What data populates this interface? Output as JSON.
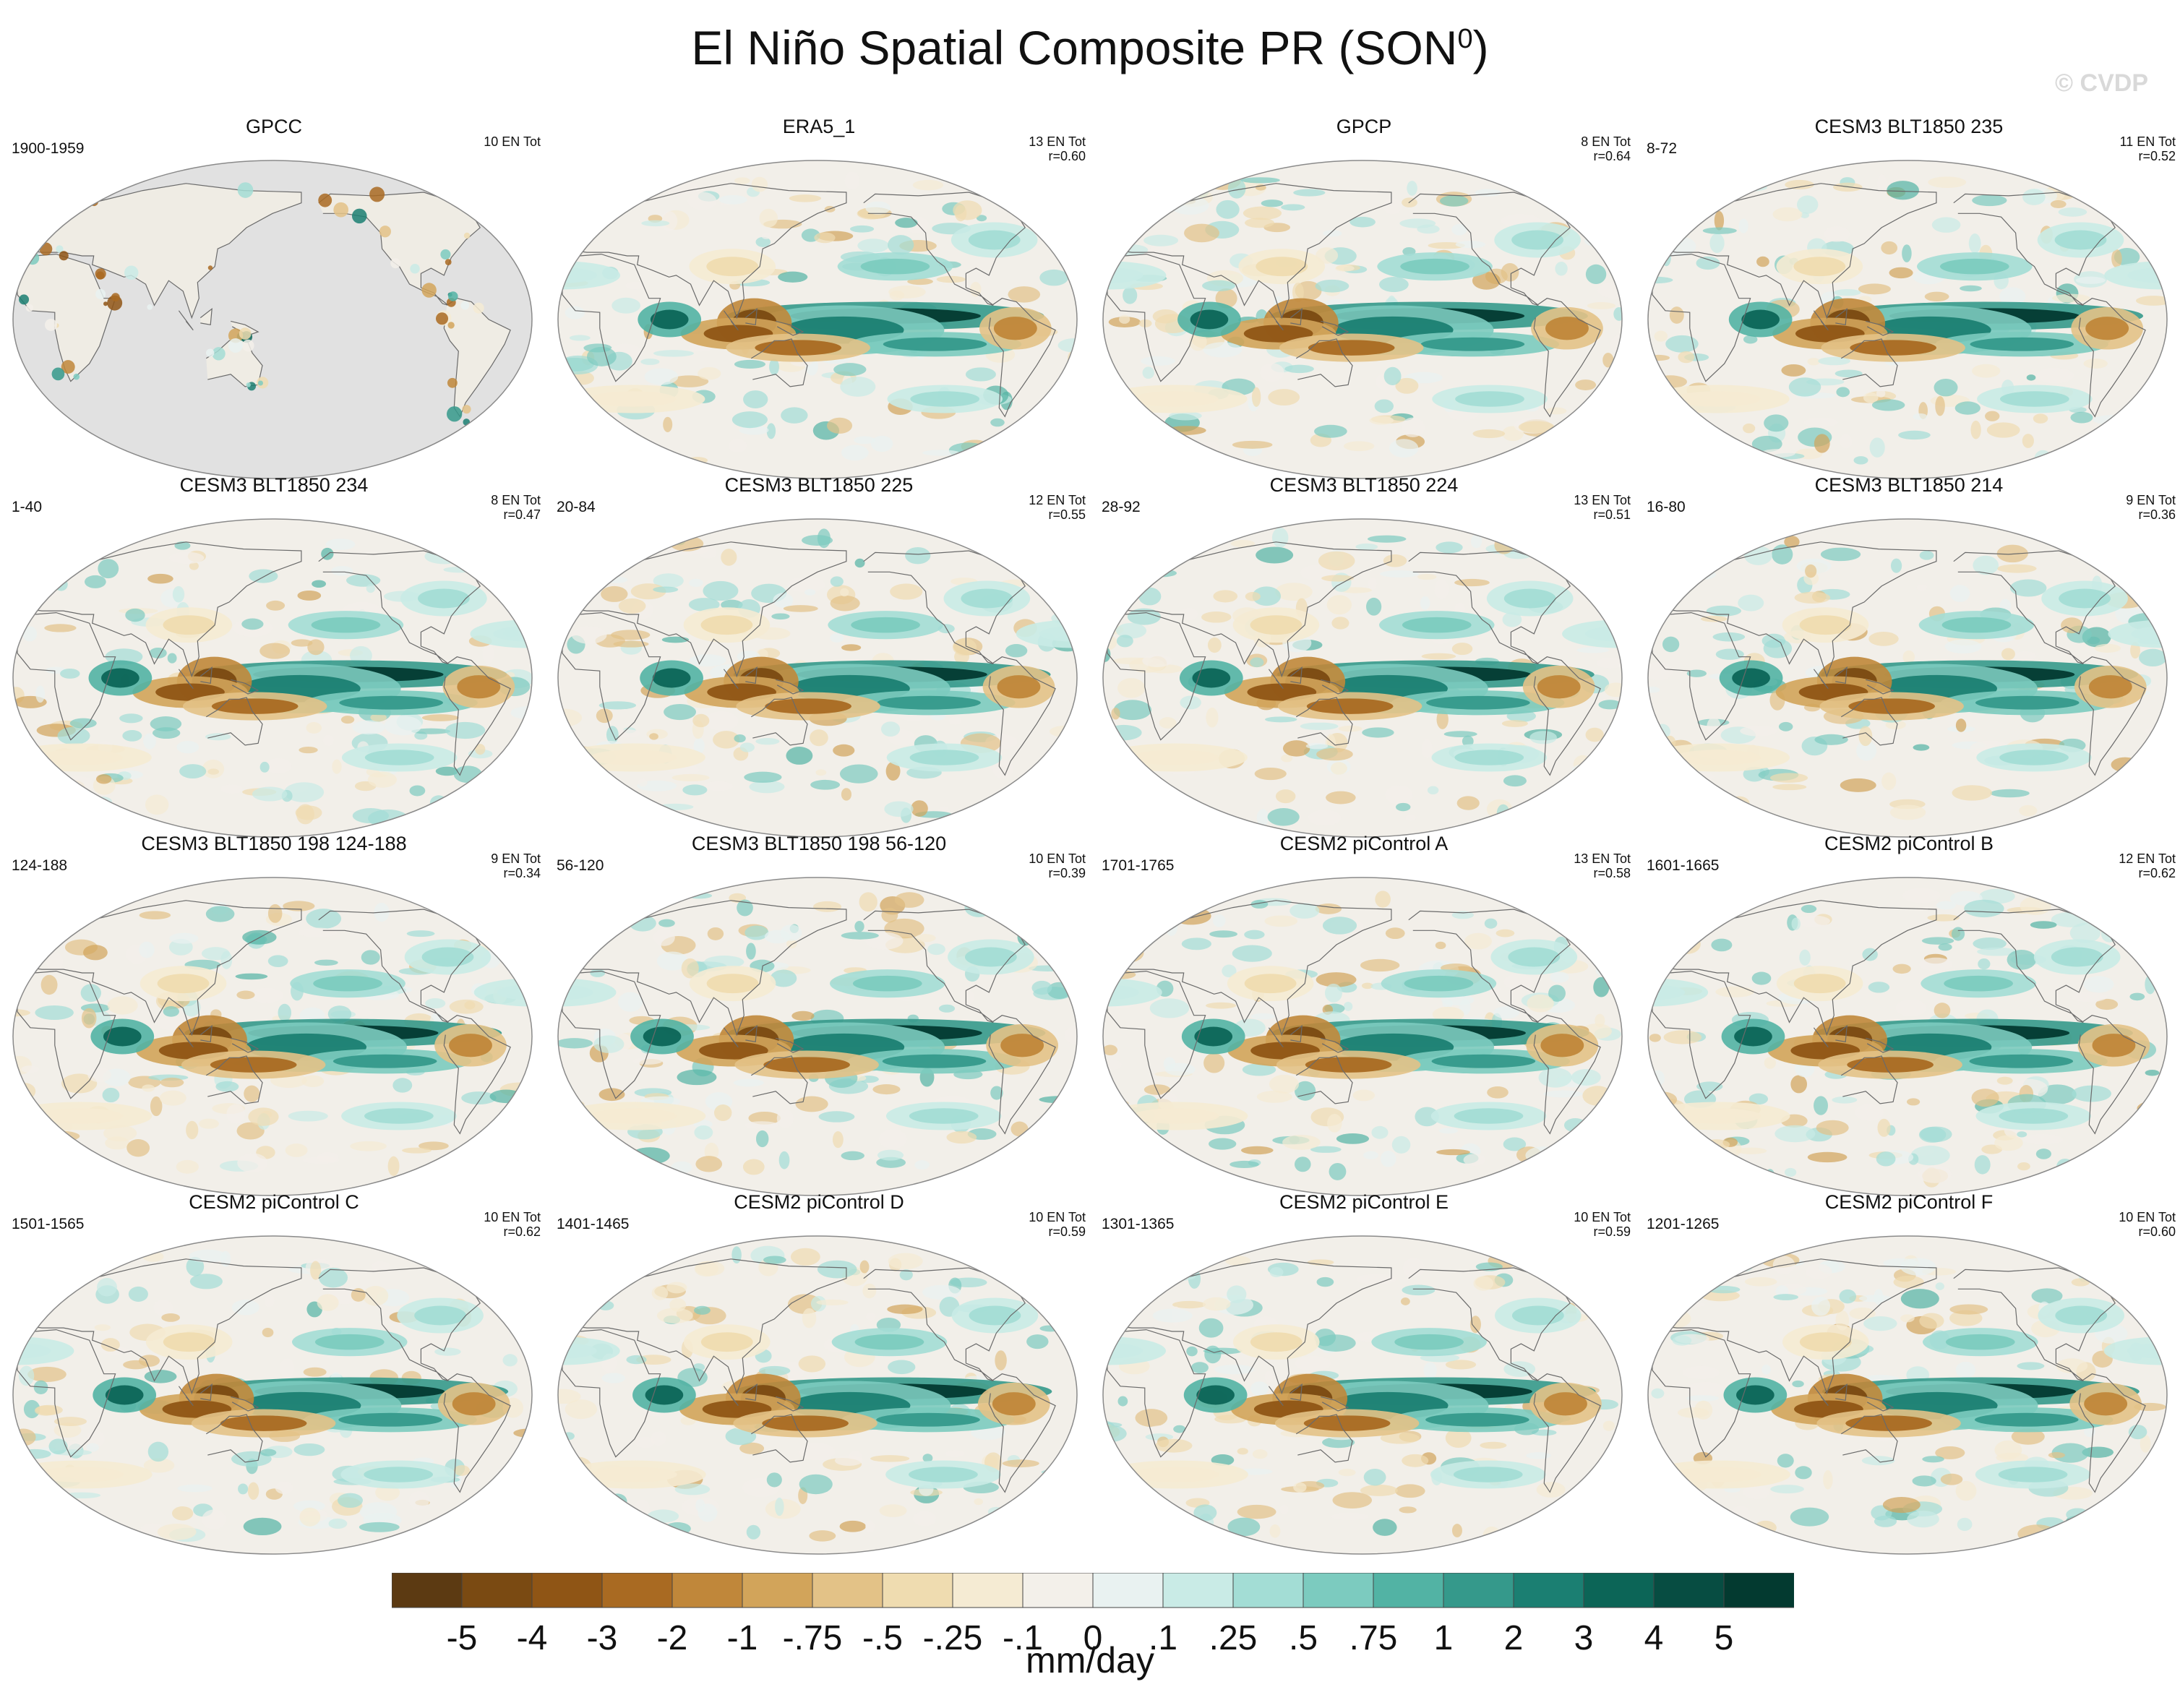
{
  "title": {
    "main": "El Niño Spatial Composite PR (SON",
    "sup": "0",
    "close": ")"
  },
  "watermark": "© CVDP",
  "chart_data": {
    "type": "heatmap",
    "title": "El Niño Spatial Composite PR (SON0)",
    "units": "mm/day",
    "colorbar": {
      "labels": [
        "-5",
        "-4",
        "-3",
        "-2",
        "-1",
        "-.75",
        "-.5",
        "-.25",
        "-.1",
        "0",
        ".1",
        ".25",
        ".5",
        ".75",
        "1",
        "2",
        "3",
        "4",
        "5"
      ],
      "colors": [
        "#5c3a12",
        "#7a4a12",
        "#8f5515",
        "#a96a22",
        "#c0873a",
        "#d2a45a",
        "#e3c287",
        "#efdcb0",
        "#f5ebd3",
        "#f3f0ea",
        "#e9f2f1",
        "#c9ebe6",
        "#a3ddd5",
        "#7ccbbf",
        "#52b3a4",
        "#35998b",
        "#1b7f72",
        "#0c6557",
        "#074d42",
        "#033a30"
      ]
    },
    "panels": [
      {
        "title": "GPCC",
        "period": "1900-1959",
        "events": "10 EN Tot",
        "r": "",
        "land_only": true
      },
      {
        "title": "ERA5_1",
        "period": "",
        "events": "13 EN Tot",
        "r": "r=0.60"
      },
      {
        "title": "GPCP",
        "period": "",
        "events": "8 EN Tot",
        "r": "r=0.64"
      },
      {
        "title": "CESM3 BLT1850 235",
        "period": "8-72",
        "events": "11 EN Tot",
        "r": "r=0.52"
      },
      {
        "title": "CESM3 BLT1850 234",
        "period": "1-40",
        "events": "8 EN Tot",
        "r": "r=0.47"
      },
      {
        "title": "CESM3 BLT1850 225",
        "period": "20-84",
        "events": "12 EN Tot",
        "r": "r=0.55"
      },
      {
        "title": "CESM3 BLT1850 224",
        "period": "28-92",
        "events": "13 EN Tot",
        "r": "r=0.51"
      },
      {
        "title": "CESM3 BLT1850 214",
        "period": "16-80",
        "events": "9 EN Tot",
        "r": "r=0.36"
      },
      {
        "title": "CESM3 BLT1850 198 124-188",
        "period": "124-188",
        "events": "9 EN Tot",
        "r": "r=0.34"
      },
      {
        "title": "CESM3 BLT1850 198 56-120",
        "period": "56-120",
        "events": "10 EN Tot",
        "r": "r=0.39"
      },
      {
        "title": "CESM2 piControl A",
        "period": "1701-1765",
        "events": "13 EN Tot",
        "r": "r=0.58"
      },
      {
        "title": "CESM2 piControl B",
        "period": "1601-1665",
        "events": "12 EN Tot",
        "r": "r=0.62"
      },
      {
        "title": "CESM2 piControl C",
        "period": "1501-1565",
        "events": "10 EN Tot",
        "r": "r=0.62"
      },
      {
        "title": "CESM2 piControl D",
        "period": "1401-1465",
        "events": "10 EN Tot",
        "r": "r=0.59"
      },
      {
        "title": "CESM2 piControl E",
        "period": "1301-1365",
        "events": "10 EN Tot",
        "r": "r=0.59"
      },
      {
        "title": "CESM2 piControl F",
        "period": "1201-1265",
        "events": "10 EN Tot",
        "r": "r=0.60"
      }
    ]
  }
}
